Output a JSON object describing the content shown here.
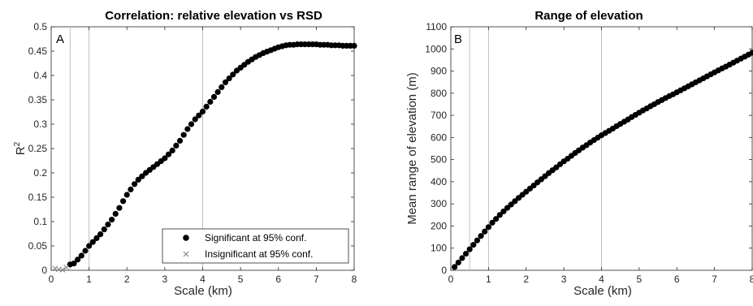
{
  "chart_data": [
    {
      "type": "scatter",
      "title": "Correlation: relative elevation vs RSD",
      "panel_label": "A",
      "xlabel": "Scale (km)",
      "ylabel": "R",
      "ylabel_sup": "2",
      "xlim": [
        0,
        8
      ],
      "ylim": [
        0,
        0.5
      ],
      "xticks": [
        "0",
        "1",
        "2",
        "3",
        "4",
        "5",
        "6",
        "7",
        "8"
      ],
      "yticks": [
        "0",
        "0.05",
        "0.1",
        "0.15",
        "0.2",
        "0.25",
        "0.3",
        "0.35",
        "0.4",
        "0.45",
        "0.5"
      ],
      "vlines": [
        0.5,
        1,
        4
      ],
      "legend": {
        "position": "bottom-right",
        "entries": [
          "Significant at 95% conf.",
          "Insignificant at 95% conf."
        ]
      },
      "series": [
        {
          "name": "Significant at 95% conf.",
          "marker": "filled-circle",
          "color": "#000000",
          "x": [
            0.5,
            0.6,
            0.7,
            0.8,
            0.9,
            1.0,
            1.1,
            1.2,
            1.3,
            1.4,
            1.5,
            1.6,
            1.7,
            1.8,
            1.9,
            2.0,
            2.1,
            2.2,
            2.3,
            2.4,
            2.5,
            2.6,
            2.7,
            2.8,
            2.9,
            3.0,
            3.1,
            3.2,
            3.3,
            3.4,
            3.5,
            3.6,
            3.7,
            3.8,
            3.9,
            4.0,
            4.1,
            4.2,
            4.3,
            4.4,
            4.5,
            4.6,
            4.7,
            4.8,
            4.9,
            5.0,
            5.1,
            5.2,
            5.3,
            5.4,
            5.5,
            5.6,
            5.7,
            5.8,
            5.9,
            6.0,
            6.1,
            6.2,
            6.3,
            6.4,
            6.5,
            6.6,
            6.7,
            6.8,
            6.9,
            7.0,
            7.1,
            7.2,
            7.3,
            7.4,
            7.5,
            7.6,
            7.7,
            7.8,
            7.9,
            8.0
          ],
          "y": [
            0.012,
            0.014,
            0.022,
            0.03,
            0.04,
            0.05,
            0.058,
            0.066,
            0.074,
            0.084,
            0.094,
            0.104,
            0.116,
            0.128,
            0.142,
            0.155,
            0.166,
            0.177,
            0.186,
            0.193,
            0.2,
            0.206,
            0.212,
            0.218,
            0.224,
            0.23,
            0.238,
            0.246,
            0.256,
            0.266,
            0.278,
            0.29,
            0.3,
            0.31,
            0.318,
            0.326,
            0.336,
            0.346,
            0.356,
            0.366,
            0.376,
            0.386,
            0.394,
            0.402,
            0.41,
            0.416,
            0.422,
            0.428,
            0.433,
            0.438,
            0.442,
            0.446,
            0.449,
            0.452,
            0.455,
            0.458,
            0.46,
            0.462,
            0.463,
            0.463,
            0.464,
            0.464,
            0.464,
            0.464,
            0.464,
            0.464,
            0.463,
            0.463,
            0.463,
            0.462,
            0.462,
            0.462,
            0.461,
            0.461,
            0.461,
            0.461
          ]
        },
        {
          "name": "Insignificant at 95% conf.",
          "marker": "x",
          "color": "#777777",
          "x": [
            0.1,
            0.2,
            0.3,
            0.4
          ],
          "y": [
            0.004,
            0.002,
            0.001,
            0.006
          ]
        }
      ]
    },
    {
      "type": "scatter",
      "title": "Range of elevation",
      "panel_label": "B",
      "xlabel": "Scale (km)",
      "ylabel": "Mean range of elevation (m)",
      "xlim": [
        0,
        8
      ],
      "ylim": [
        0,
        1100
      ],
      "xticks": [
        "0",
        "1",
        "2",
        "3",
        "4",
        "5",
        "6",
        "7",
        "8"
      ],
      "yticks": [
        "0",
        "100",
        "200",
        "300",
        "400",
        "500",
        "600",
        "700",
        "800",
        "900",
        "1000",
        "1100"
      ],
      "vlines": [
        0.5,
        1,
        4
      ],
      "series": [
        {
          "marker": "filled-circle",
          "color": "#000000",
          "x": [
            0.1,
            0.2,
            0.3,
            0.4,
            0.5,
            0.6,
            0.7,
            0.8,
            0.9,
            1.0,
            1.1,
            1.2,
            1.3,
            1.4,
            1.5,
            1.6,
            1.7,
            1.8,
            1.9,
            2.0,
            2.1,
            2.2,
            2.3,
            2.4,
            2.5,
            2.6,
            2.7,
            2.8,
            2.9,
            3.0,
            3.1,
            3.2,
            3.3,
            3.4,
            3.5,
            3.6,
            3.7,
            3.8,
            3.9,
            4.0,
            4.1,
            4.2,
            4.3,
            4.4,
            4.5,
            4.6,
            4.7,
            4.8,
            4.9,
            5.0,
            5.1,
            5.2,
            5.3,
            5.4,
            5.5,
            5.6,
            5.7,
            5.8,
            5.9,
            6.0,
            6.1,
            6.2,
            6.3,
            6.4,
            6.5,
            6.6,
            6.7,
            6.8,
            6.9,
            7.0,
            7.1,
            7.2,
            7.3,
            7.4,
            7.5,
            7.6,
            7.7,
            7.8,
            7.9,
            8.0
          ],
          "y": [
            15,
            35,
            55,
            75,
            95,
            115,
            135,
            155,
            175,
            195,
            215,
            232,
            250,
            266,
            282,
            297,
            312,
            327,
            341,
            355,
            369,
            383,
            397,
            411,
            425,
            439,
            452,
            465,
            479,
            492,
            504,
            517,
            530,
            542,
            554,
            565,
            577,
            588,
            599,
            610,
            620,
            630,
            640,
            651,
            661,
            671,
            681,
            692,
            702,
            712,
            722,
            731,
            741,
            750,
            760,
            769,
            778,
            787,
            795,
            804,
            813,
            822,
            831,
            840,
            849,
            858,
            867,
            876,
            885,
            894,
            903,
            912,
            920,
            929,
            938,
            947,
            956,
            965,
            974,
            983
          ]
        }
      ]
    }
  ]
}
